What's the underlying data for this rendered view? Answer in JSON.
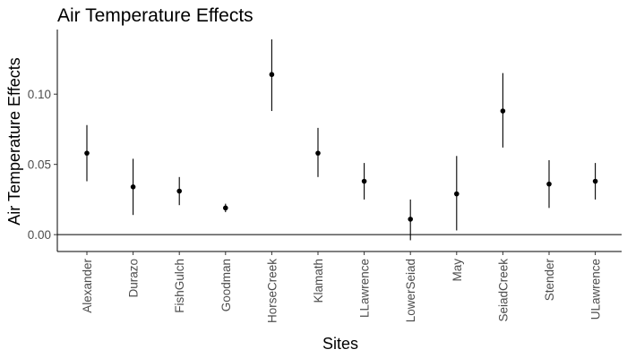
{
  "chart_data": {
    "type": "scatter",
    "title": "Air Temperature Effects",
    "xlabel": "Sites",
    "ylabel": "Air Temperature Effects",
    "categories": [
      "Alexander",
      "Durazo",
      "FishGulch",
      "Goodman",
      "HorseCreek",
      "Klamath",
      "LLawrence",
      "LowerSeiad",
      "May",
      "SeiadCreek",
      "Stender",
      "ULawrence"
    ],
    "values": [
      0.058,
      0.034,
      0.031,
      0.019,
      0.114,
      0.058,
      0.038,
      0.011,
      0.029,
      0.088,
      0.036,
      0.038
    ],
    "error_low": [
      0.038,
      0.014,
      0.021,
      0.016,
      0.088,
      0.041,
      0.025,
      -0.004,
      0.003,
      0.062,
      0.019,
      0.025
    ],
    "error_high": [
      0.078,
      0.054,
      0.041,
      0.022,
      0.139,
      0.076,
      0.051,
      0.025,
      0.056,
      0.115,
      0.053,
      0.051
    ],
    "yticks": [
      0.0,
      0.05,
      0.1
    ],
    "ytick_labels": [
      "0.00",
      "0.05",
      "0.10"
    ],
    "ylim": [
      -0.012,
      0.146
    ],
    "reference_line": 0,
    "grid": false,
    "legend": "none",
    "colors": {
      "points": "#000000",
      "axis_text": "#4d4d4d"
    }
  }
}
